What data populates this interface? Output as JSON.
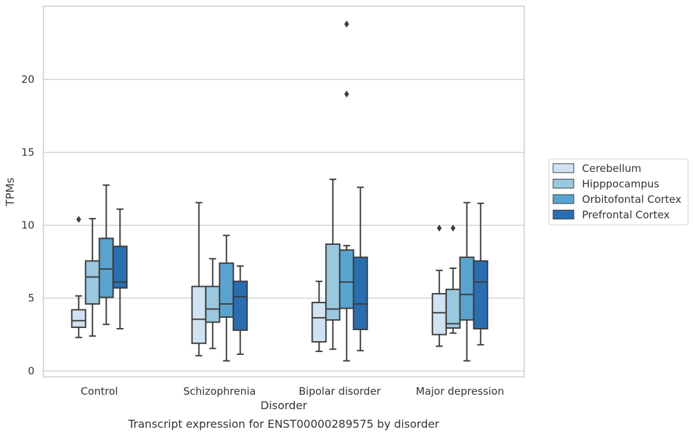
{
  "chart_data": {
    "type": "boxplot",
    "caption": "Transcript expression for ENST00000289575 by disorder",
    "xlabel": "Disorder",
    "ylabel": "TPMs",
    "ylim": [
      -0.4,
      25
    ],
    "yticks": [
      0,
      5,
      10,
      15,
      20
    ],
    "grid": "horizontal",
    "legend_position": "right",
    "categories": [
      "Control",
      "Schizophrenia",
      "Bipolar disorder",
      "Major depression"
    ],
    "series": [
      {
        "name": "Cerebellum",
        "color": "#d1e2f2",
        "boxes": [
          {
            "whislo": 2.3,
            "q1": 3.0,
            "med": 3.45,
            "q3": 4.2,
            "whishi": 5.15,
            "fliers": [
              10.4
            ]
          },
          {
            "whislo": 1.05,
            "q1": 1.9,
            "med": 3.55,
            "q3": 5.8,
            "whishi": 11.55,
            "fliers": []
          },
          {
            "whislo": 1.35,
            "q1": 2.0,
            "med": 3.65,
            "q3": 4.7,
            "whishi": 6.15,
            "fliers": []
          },
          {
            "whislo": 1.7,
            "q1": 2.5,
            "med": 4.0,
            "q3": 5.3,
            "whishi": 6.9,
            "fliers": [
              9.8
            ]
          }
        ]
      },
      {
        "name": "Hipppocampus",
        "color": "#9ac8e0",
        "boxes": [
          {
            "whislo": 2.4,
            "q1": 4.6,
            "med": 6.45,
            "q3": 7.55,
            "whishi": 10.45,
            "fliers": []
          },
          {
            "whislo": 1.55,
            "q1": 3.35,
            "med": 4.25,
            "q3": 5.8,
            "whishi": 7.7,
            "fliers": []
          },
          {
            "whislo": 1.5,
            "q1": 3.5,
            "med": 4.25,
            "q3": 8.7,
            "whishi": 13.15,
            "fliers": []
          },
          {
            "whislo": 2.6,
            "q1": 2.95,
            "med": 3.25,
            "q3": 5.6,
            "whishi": 7.05,
            "fliers": [
              9.8
            ]
          }
        ]
      },
      {
        "name": "Orbitofontal Cortex",
        "color": "#5ba3cf",
        "boxes": [
          {
            "whislo": 3.2,
            "q1": 5.05,
            "med": 7.0,
            "q3": 9.1,
            "whishi": 12.75,
            "fliers": []
          },
          {
            "whislo": 0.7,
            "q1": 3.7,
            "med": 4.6,
            "q3": 7.4,
            "whishi": 9.3,
            "fliers": []
          },
          {
            "whislo": 0.7,
            "q1": 4.3,
            "med": 6.1,
            "q3": 8.3,
            "whishi": 8.6,
            "fliers": [
              19.0,
              23.8
            ]
          },
          {
            "whislo": 0.7,
            "q1": 3.5,
            "med": 5.25,
            "q3": 7.8,
            "whishi": 11.55,
            "fliers": []
          }
        ]
      },
      {
        "name": "Prefrontal Cortex",
        "color": "#2a6eb1",
        "boxes": [
          {
            "whislo": 2.9,
            "q1": 5.7,
            "med": 6.1,
            "q3": 8.55,
            "whishi": 11.1,
            "fliers": []
          },
          {
            "whislo": 1.15,
            "q1": 2.8,
            "med": 5.1,
            "q3": 6.15,
            "whishi": 7.2,
            "fliers": []
          },
          {
            "whislo": 1.4,
            "q1": 2.85,
            "med": 4.6,
            "q3": 7.8,
            "whishi": 12.6,
            "fliers": []
          },
          {
            "whislo": 1.8,
            "q1": 2.9,
            "med": 6.1,
            "q3": 7.55,
            "whishi": 11.5,
            "fliers": []
          }
        ]
      }
    ]
  }
}
